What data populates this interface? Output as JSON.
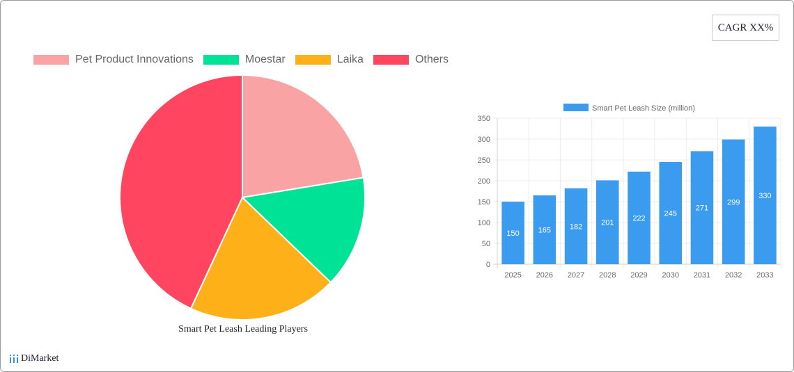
{
  "cagr_button": {
    "label": "CAGR XX%"
  },
  "logo": {
    "text": "DiMarket",
    "icon": "bar-chart-icon",
    "color": "#3a8ee6"
  },
  "chart_data": [
    {
      "type": "pie",
      "title": "Smart Pet Leash Leading Players",
      "legend_position": "top",
      "categories": [
        "Pet Product Innovations",
        "Moestar",
        "Laika",
        "Others"
      ],
      "values": [
        22.4,
        14.8,
        19.7,
        43.1
      ],
      "unit": "% (estimated from slice angles)",
      "colors": [
        "#f9a3a4",
        "#00e396",
        "#feb019",
        "#ff4560"
      ]
    },
    {
      "type": "bar",
      "title": "",
      "legend": [
        "Smart Pet Leash Size (million)"
      ],
      "legend_position": "top",
      "categories": [
        "2025",
        "2026",
        "2027",
        "2028",
        "2029",
        "2030",
        "2031",
        "2032",
        "2033"
      ],
      "series": [
        {
          "name": "Smart Pet Leash Size (million)",
          "values": [
            150,
            165,
            182,
            201,
            222,
            245,
            271,
            299,
            330
          ],
          "color": "#3a9bef"
        }
      ],
      "xlabel": "",
      "ylabel": "",
      "ylim": [
        0,
        350
      ],
      "yticks": [
        0,
        50,
        100,
        150,
        200,
        250,
        300,
        350
      ],
      "grid": true,
      "data_labels": true
    }
  ]
}
